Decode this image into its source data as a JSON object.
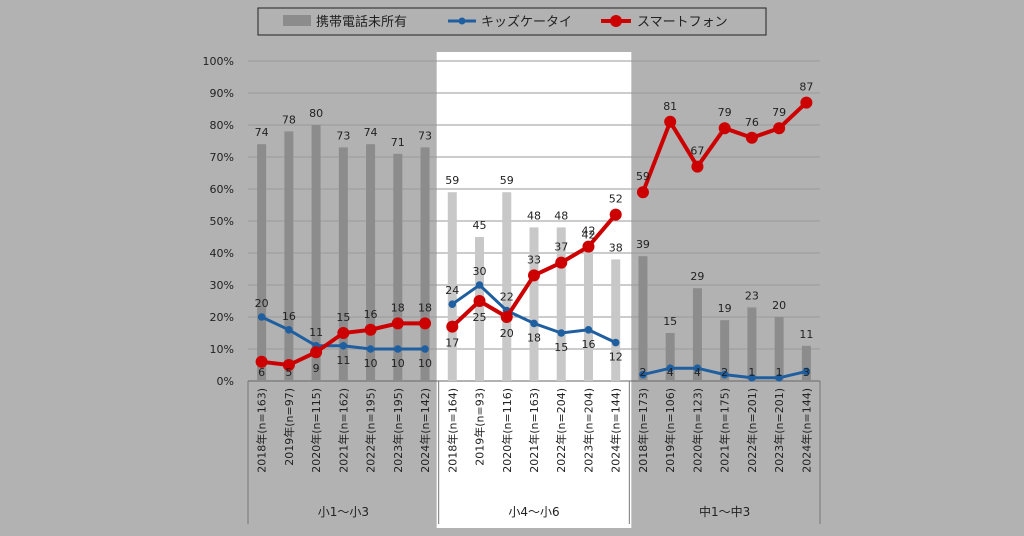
{
  "chart_data": {
    "type": "bar+line",
    "legend": {
      "placement": "top",
      "items": [
        {
          "label": "携帯電話未所有",
          "kind": "bar",
          "color": "#8c8c8c"
        },
        {
          "label": "キッズケータイ",
          "kind": "line",
          "color": "#1f5fa0"
        },
        {
          "label": "スマートフォン",
          "kind": "line",
          "color": "#cc0000"
        }
      ]
    },
    "y_axis": {
      "min": 0,
      "max": 100,
      "step": 10,
      "suffix": "%",
      "grid": true
    },
    "groups": [
      {
        "label": "小1～小3",
        "highlight": false,
        "categories": [
          "2018年(n=163)",
          "2019年(n=97)",
          "2020年(n=115)",
          "2021年(n=162)",
          "2022年(n=195)",
          "2023年(n=195)",
          "2024年(n=142)"
        ],
        "no_phone": [
          74,
          78,
          80,
          73,
          74,
          71,
          73
        ],
        "kids_phone": [
          20,
          16,
          11,
          11,
          10,
          10,
          10
        ],
        "smartphone": [
          6,
          5,
          9,
          15,
          16,
          18,
          18
        ]
      },
      {
        "label": "小4～小6",
        "highlight": true,
        "categories": [
          "2018年(n=164)",
          "2019年(n=93)",
          "2020年(n=116)",
          "2021年(n=163)",
          "2022年(n=204)",
          "2023年(n=204)",
          "2024年(n=144)"
        ],
        "no_phone": [
          59,
          45,
          59,
          48,
          48,
          42,
          38
        ],
        "kids_phone": [
          24,
          30,
          22,
          18,
          15,
          16,
          12
        ],
        "smartphone": [
          17,
          25,
          20,
          33,
          37,
          42,
          52
        ]
      },
      {
        "label": "中1～中3",
        "highlight": false,
        "categories": [
          "2018年(n=173)",
          "2019年(n=106)",
          "2020年(n=123)",
          "2021年(n=175)",
          "2022年(n=201)",
          "2023年(n=201)",
          "2024年(n=144)"
        ],
        "no_phone": [
          39,
          15,
          29,
          19,
          23,
          20,
          11
        ],
        "kids_phone": [
          2,
          4,
          4,
          2,
          1,
          1,
          3
        ],
        "smartphone": [
          59,
          81,
          67,
          79,
          76,
          79,
          87
        ]
      }
    ],
    "colors": {
      "bar": "#8c8c8c",
      "bar_highlight": "#c8c8c8",
      "kids": "#1f5fa0",
      "smart": "#cc0000",
      "highlight_panel": "#ffffff",
      "grid": "#999999"
    }
  }
}
